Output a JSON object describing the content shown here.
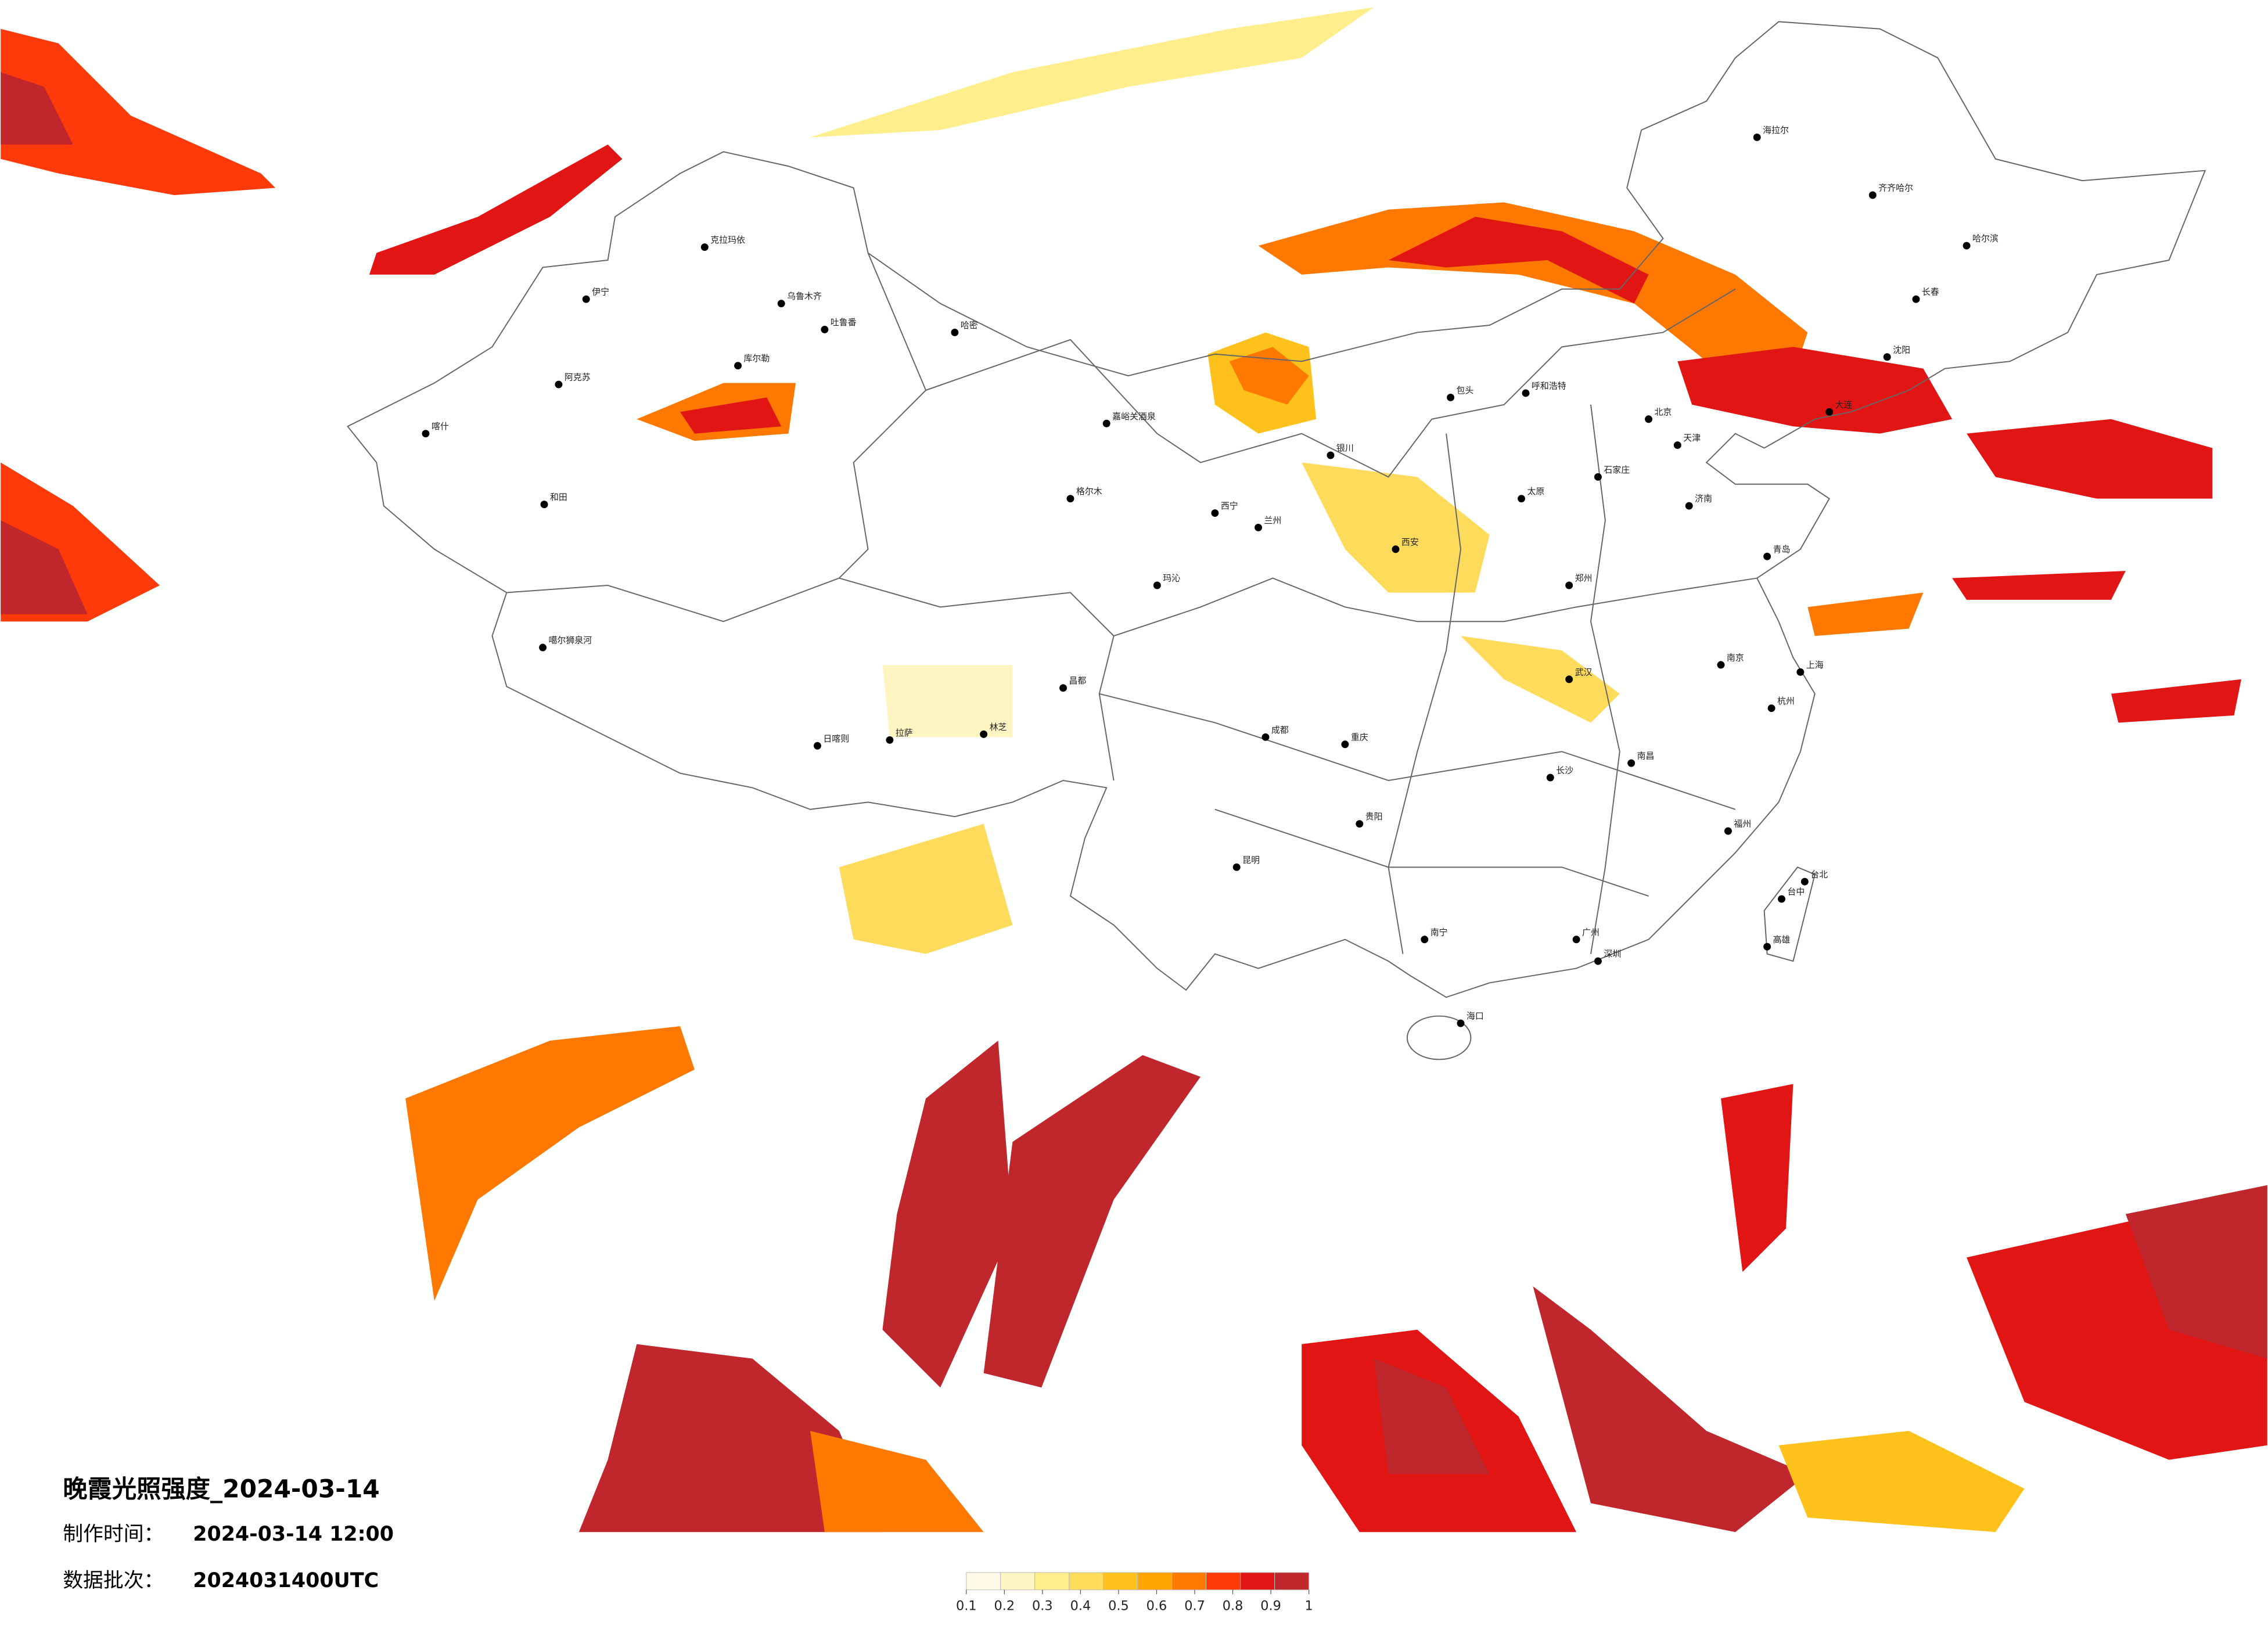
{
  "title": "晚霞光照强度_2024-03-14",
  "made_label": "制作时间：",
  "made_time": "2024-03-14 12:00",
  "batch_label": "数据批次：",
  "batch": "2024031400UTC",
  "legend": {
    "ticks": [
      0.1,
      0.2,
      0.3,
      0.4,
      0.5,
      0.6,
      0.7,
      0.8,
      0.9,
      1
    ],
    "colors": [
      "#fffbe6",
      "#fff5c2",
      "#ffee8c",
      "#ffdb5c",
      "#ffc21c",
      "#ffa400",
      "#ff7800",
      "#ff3a0a",
      "#e21515",
      "#c0272d"
    ]
  },
  "cities": [
    "克拉玛依",
    "伊宁",
    "乌鲁木齐",
    "吐鲁番",
    "哈密",
    "阿克苏",
    "库尔勒",
    "喀什",
    "和田",
    "嘉峪关酒泉",
    "格尔木",
    "玛沁",
    "噶尔狮泉河",
    "日喀则",
    "拉萨",
    "昌都",
    "林芝",
    "呼和浩特",
    "包头",
    "北京",
    "天津",
    "石家庄",
    "太原",
    "西安",
    "郑州",
    "济南",
    "青岛",
    "南京",
    "上海",
    "杭州",
    "武汉",
    "长沙",
    "南昌",
    "福州",
    "广州",
    "深圳",
    "南宁",
    "海口",
    "昆明",
    "贵阳",
    "成都",
    "重庆",
    "兰州",
    "西宁",
    "银川",
    "哈尔滨",
    "长春",
    "沈阳",
    "大连",
    "齐齐哈尔",
    "海拉尔",
    "台北",
    "台中",
    "高雄"
  ]
}
